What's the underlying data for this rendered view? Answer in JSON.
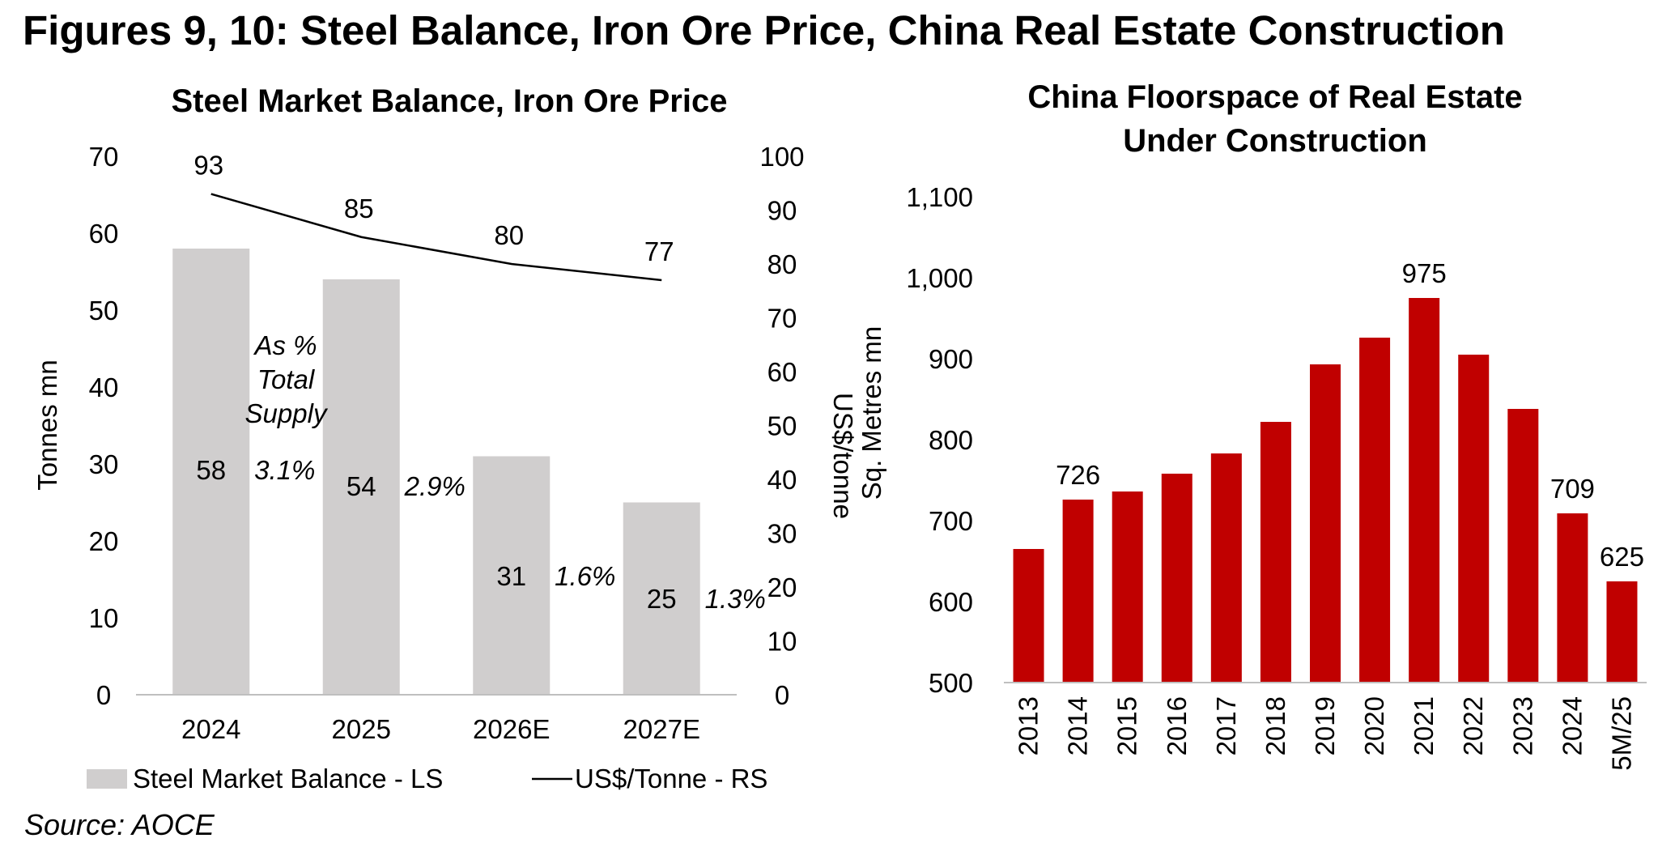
{
  "title": "Figures 9, 10: Steel Balance, Iron Ore Price, China Real Estate Construction",
  "source": "Source: AOCE",
  "colors": {
    "bar_grey": "#d0cece",
    "bar_red": "#c00000",
    "axis": "#bfbfbf",
    "line": "#000000"
  },
  "chart_data": [
    {
      "type": "bar",
      "title": "Steel Market Balance, Iron Ore Price",
      "categories": [
        "2024",
        "2025",
        "2026E",
        "2027E"
      ],
      "series": [
        {
          "name": "Steel Market Balance - LS",
          "type": "bar",
          "axis": "left",
          "values": [
            58,
            54,
            31,
            25
          ]
        },
        {
          "name": "US$/Tonne - RS",
          "type": "line",
          "axis": "right",
          "values": [
            93,
            85,
            80,
            77
          ]
        }
      ],
      "pct_labels": [
        "3.1%",
        "2.9%",
        "1.6%",
        "1.3%"
      ],
      "annotation": [
        "As %",
        "Total",
        "Supply"
      ],
      "ylabel": "Tonnes mn",
      "ylim": [
        0,
        70
      ],
      "yticks": [
        0,
        10,
        20,
        30,
        40,
        50,
        60,
        70
      ],
      "y2label": "US$/tonne",
      "y2lim": [
        0,
        100
      ],
      "y2ticks": [
        0,
        10,
        20,
        30,
        40,
        50,
        60,
        70,
        80,
        90,
        100
      ],
      "legend": [
        "Steel Market Balance - LS",
        "US$/Tonne - RS"
      ],
      "grid": false
    },
    {
      "type": "bar",
      "title": "China Floorspace of Real Estate Under Construction",
      "title_lines": [
        "China Floorspace of Real Estate",
        "Under Construction"
      ],
      "categories": [
        "2013",
        "2014",
        "2015",
        "2016",
        "2017",
        "2018",
        "2019",
        "2020",
        "2021",
        "2022",
        "2023",
        "2024",
        "5M/25"
      ],
      "values": [
        665,
        726,
        736,
        758,
        783,
        822,
        893,
        926,
        975,
        905,
        838,
        709,
        625
      ],
      "data_labels": [
        "",
        "726",
        "",
        "",
        "",
        "",
        "",
        "",
        "975",
        "",
        "",
        "709",
        "625"
      ],
      "ylabel": "Sq. Metres mn",
      "ylim": [
        500,
        1100
      ],
      "yticks": [
        "500",
        "600",
        "700",
        "800",
        "900",
        "1,000",
        "1,100"
      ],
      "grid": false
    }
  ]
}
